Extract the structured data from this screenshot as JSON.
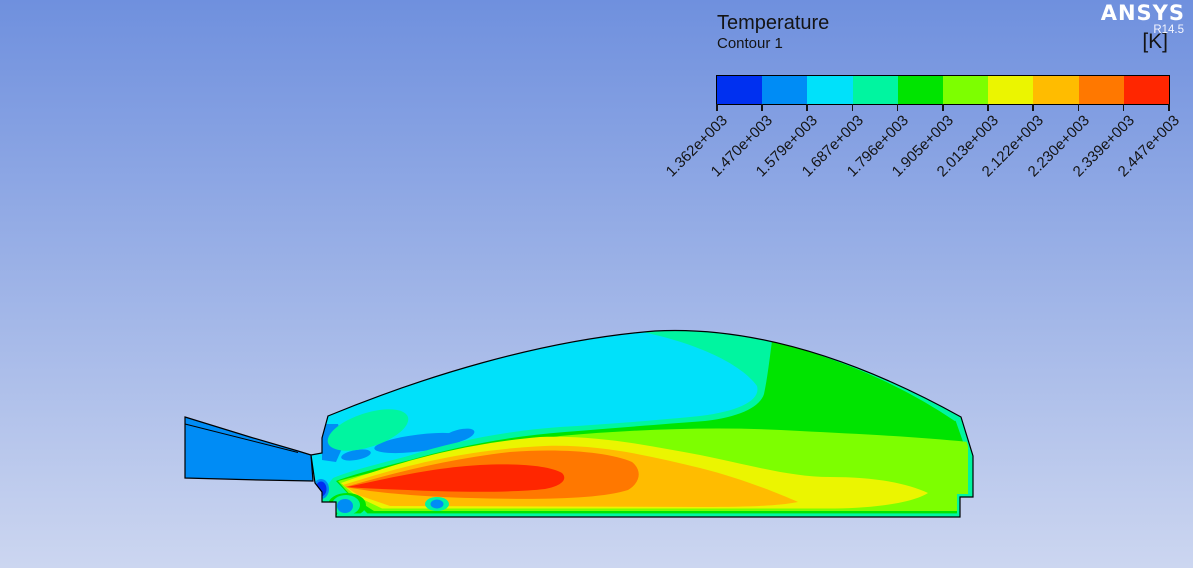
{
  "header": {
    "title": "Temperature",
    "subtitle": "Contour 1",
    "unit": "[K]",
    "brand": "ANSYS",
    "version": "R14.5"
  },
  "colorbar": {
    "levels": [
      "1.362e+003",
      "1.470e+003",
      "1.579e+003",
      "1.687e+003",
      "1.796e+003",
      "1.905e+003",
      "2.013e+003",
      "2.122e+003",
      "2.230e+003",
      "2.339e+003",
      "2.447e+003"
    ],
    "colors": [
      "#0030F0",
      "#008CF5",
      "#00E1FA",
      "#00F5A0",
      "#00E400",
      "#7DFF00",
      "#EBF500",
      "#FFBC00",
      "#FF7800",
      "#FF2600"
    ]
  },
  "palette": {
    "blue": "#0030F0",
    "dodger": "#008CF5",
    "cyan": "#00E1FA",
    "teal": "#00F5A0",
    "green": "#00E400",
    "chartreuse": "#7DFF00",
    "yellow": "#EBF500",
    "amber": "#FFBC00",
    "orange": "#FF7800",
    "red": "#FF2600",
    "outline": "#000000"
  },
  "background": {
    "top": "#6F90DE",
    "bottom": "#CCD6F0"
  }
}
